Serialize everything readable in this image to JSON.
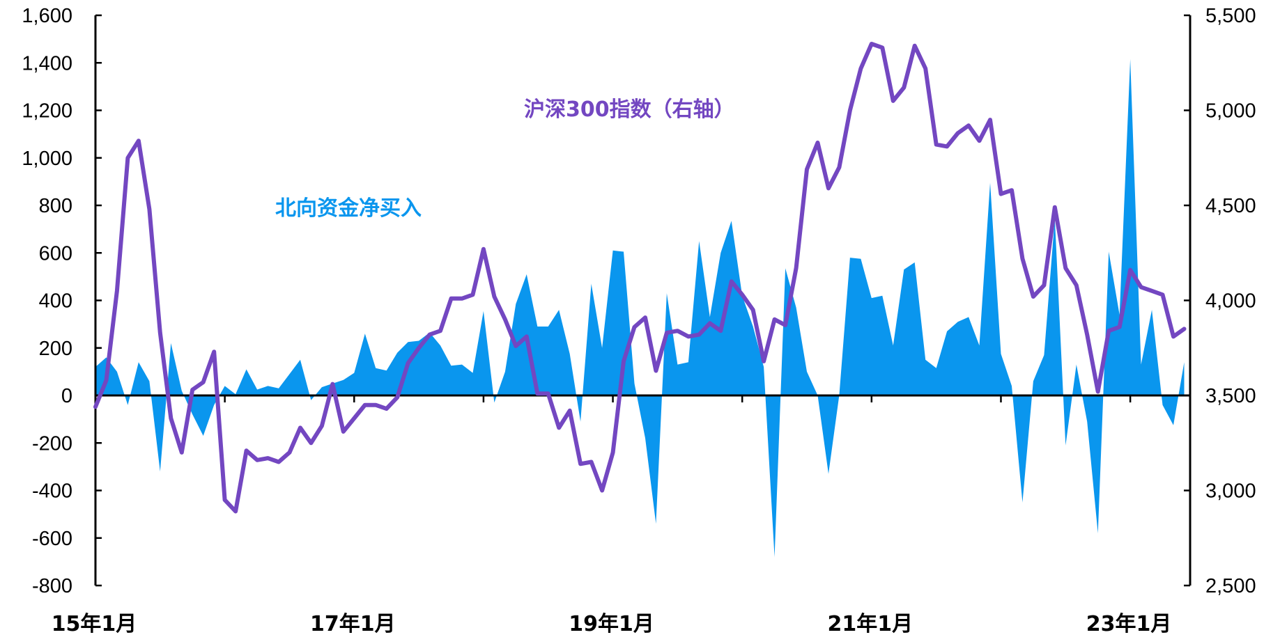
{
  "chart_data": {
    "type": "area",
    "colors": {
      "northbound": "#0a96ee",
      "hs300": "#7347c1",
      "axis": "#000000"
    },
    "x_start_month": "2015-01",
    "x_tick_labels": [
      "15年1月",
      "17年1月",
      "19年1月",
      "21年1月",
      "23年1月"
    ],
    "x_tick_months": [
      "2015-01",
      "2017-01",
      "2019-01",
      "2021-01",
      "2023-01"
    ],
    "left_axis": {
      "ylim": [
        -800,
        1600
      ],
      "ticks": [
        "-800",
        "-600",
        "-400",
        "-200",
        "0",
        "200",
        "400",
        "600",
        "800",
        "1,000",
        "1,200",
        "1,400",
        "1,600"
      ],
      "tick_values": [
        -800,
        -600,
        -400,
        -200,
        0,
        200,
        400,
        600,
        800,
        1000,
        1200,
        1400,
        1600
      ]
    },
    "right_axis": {
      "ylim": [
        2500,
        5500
      ],
      "ticks": [
        "2,500",
        "3,000",
        "3,500",
        "4,000",
        "4,500",
        "5,000",
        "5,500"
      ],
      "tick_values": [
        2500,
        3000,
        3500,
        4000,
        4500,
        5000,
        5500
      ]
    },
    "series": [
      {
        "name": "北向资金净买入",
        "type": "area",
        "axis": "left",
        "values": [
          120,
          160,
          100,
          -40,
          140,
          60,
          -320,
          220,
          20,
          -80,
          -170,
          -40,
          40,
          5,
          110,
          25,
          40,
          30,
          90,
          150,
          -20,
          35,
          50,
          65,
          95,
          260,
          115,
          105,
          180,
          225,
          230,
          265,
          210,
          125,
          130,
          95,
          355,
          -30,
          100,
          385,
          510,
          290,
          290,
          360,
          175,
          -110,
          470,
          200,
          610,
          605,
          50,
          -180,
          -540,
          430,
          130,
          140,
          650,
          330,
          600,
          735,
          420,
          290,
          120,
          -680,
          535,
          370,
          100,
          0,
          -330,
          0,
          580,
          575,
          410,
          420,
          210,
          530,
          560,
          150,
          115,
          270,
          310,
          330,
          210,
          895,
          175,
          40,
          -450,
          60,
          170,
          745,
          -210,
          130,
          -110,
          -580,
          605,
          340,
          1415,
          130,
          360,
          -40,
          -125,
          140
        ]
      },
      {
        "name": "沪深300指数（右轴）",
        "type": "line",
        "axis": "right",
        "values": [
          3440,
          3580,
          4050,
          4750,
          4840,
          4480,
          3830,
          3380,
          3200,
          3530,
          3570,
          3730,
          2950,
          2890,
          3210,
          3160,
          3170,
          3150,
          3200,
          3330,
          3250,
          3340,
          3560,
          3310,
          3380,
          3450,
          3450,
          3430,
          3490,
          3670,
          3750,
          3820,
          3840,
          4010,
          4010,
          4030,
          4270,
          4020,
          3900,
          3760,
          3810,
          3510,
          3510,
          3330,
          3420,
          3140,
          3150,
          3000,
          3200,
          3680,
          3860,
          3910,
          3630,
          3830,
          3840,
          3810,
          3820,
          3880,
          3840,
          4100,
          4030,
          3950,
          3680,
          3900,
          3870,
          4170,
          4690,
          4830,
          4590,
          4700,
          5000,
          5220,
          5350,
          5330,
          5050,
          5120,
          5340,
          5220,
          4820,
          4810,
          4880,
          4920,
          4840,
          4950,
          4560,
          4580,
          4220,
          4020,
          4080,
          4490,
          4170,
          4080,
          3820,
          3520,
          3840,
          3860,
          4160,
          4070,
          4050,
          4030,
          3810,
          3850
        ]
      }
    ]
  },
  "labels": {
    "northbound": "北向资金净买入",
    "hs300": "沪深300指数（右轴）"
  }
}
